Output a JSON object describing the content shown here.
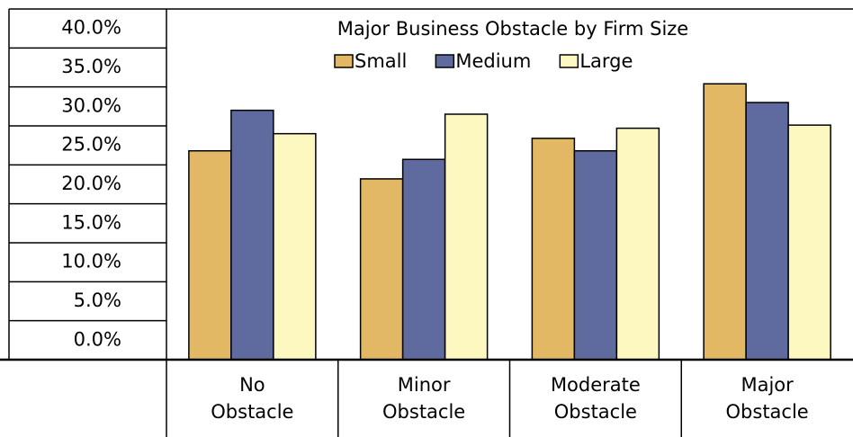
{
  "chart_data": {
    "type": "bar",
    "title": "Major Business Obstacle by Firm Size",
    "categories": [
      "No Obstacle",
      "Minor Obstacle",
      "Moderate Obstacle",
      "Major Obstacle"
    ],
    "series": [
      {
        "name": "Small",
        "color": "#e2b865",
        "values": [
          26.8,
          23.2,
          28.4,
          35.4
        ]
      },
      {
        "name": "Medium",
        "color": "#5f6a9e",
        "values": [
          32.0,
          25.7,
          26.8,
          33.0
        ]
      },
      {
        "name": "Large",
        "color": "#fdf8c0",
        "values": [
          29.0,
          31.5,
          29.7,
          30.1
        ]
      }
    ],
    "ylim": [
      0,
      45
    ],
    "yticks": [
      {
        "value": 0,
        "label": "0.0%"
      },
      {
        "value": 5,
        "label": "5.0%"
      },
      {
        "value": 10,
        "label": "10.0%"
      },
      {
        "value": 15,
        "label": "15.0%"
      },
      {
        "value": 20,
        "label": "20.0%"
      },
      {
        "value": 25,
        "label": "25.0%"
      },
      {
        "value": 30,
        "label": "30.0%"
      },
      {
        "value": 35,
        "label": "35.0%"
      },
      {
        "value": 40,
        "label": "40.0%"
      }
    ],
    "legend": "top"
  }
}
